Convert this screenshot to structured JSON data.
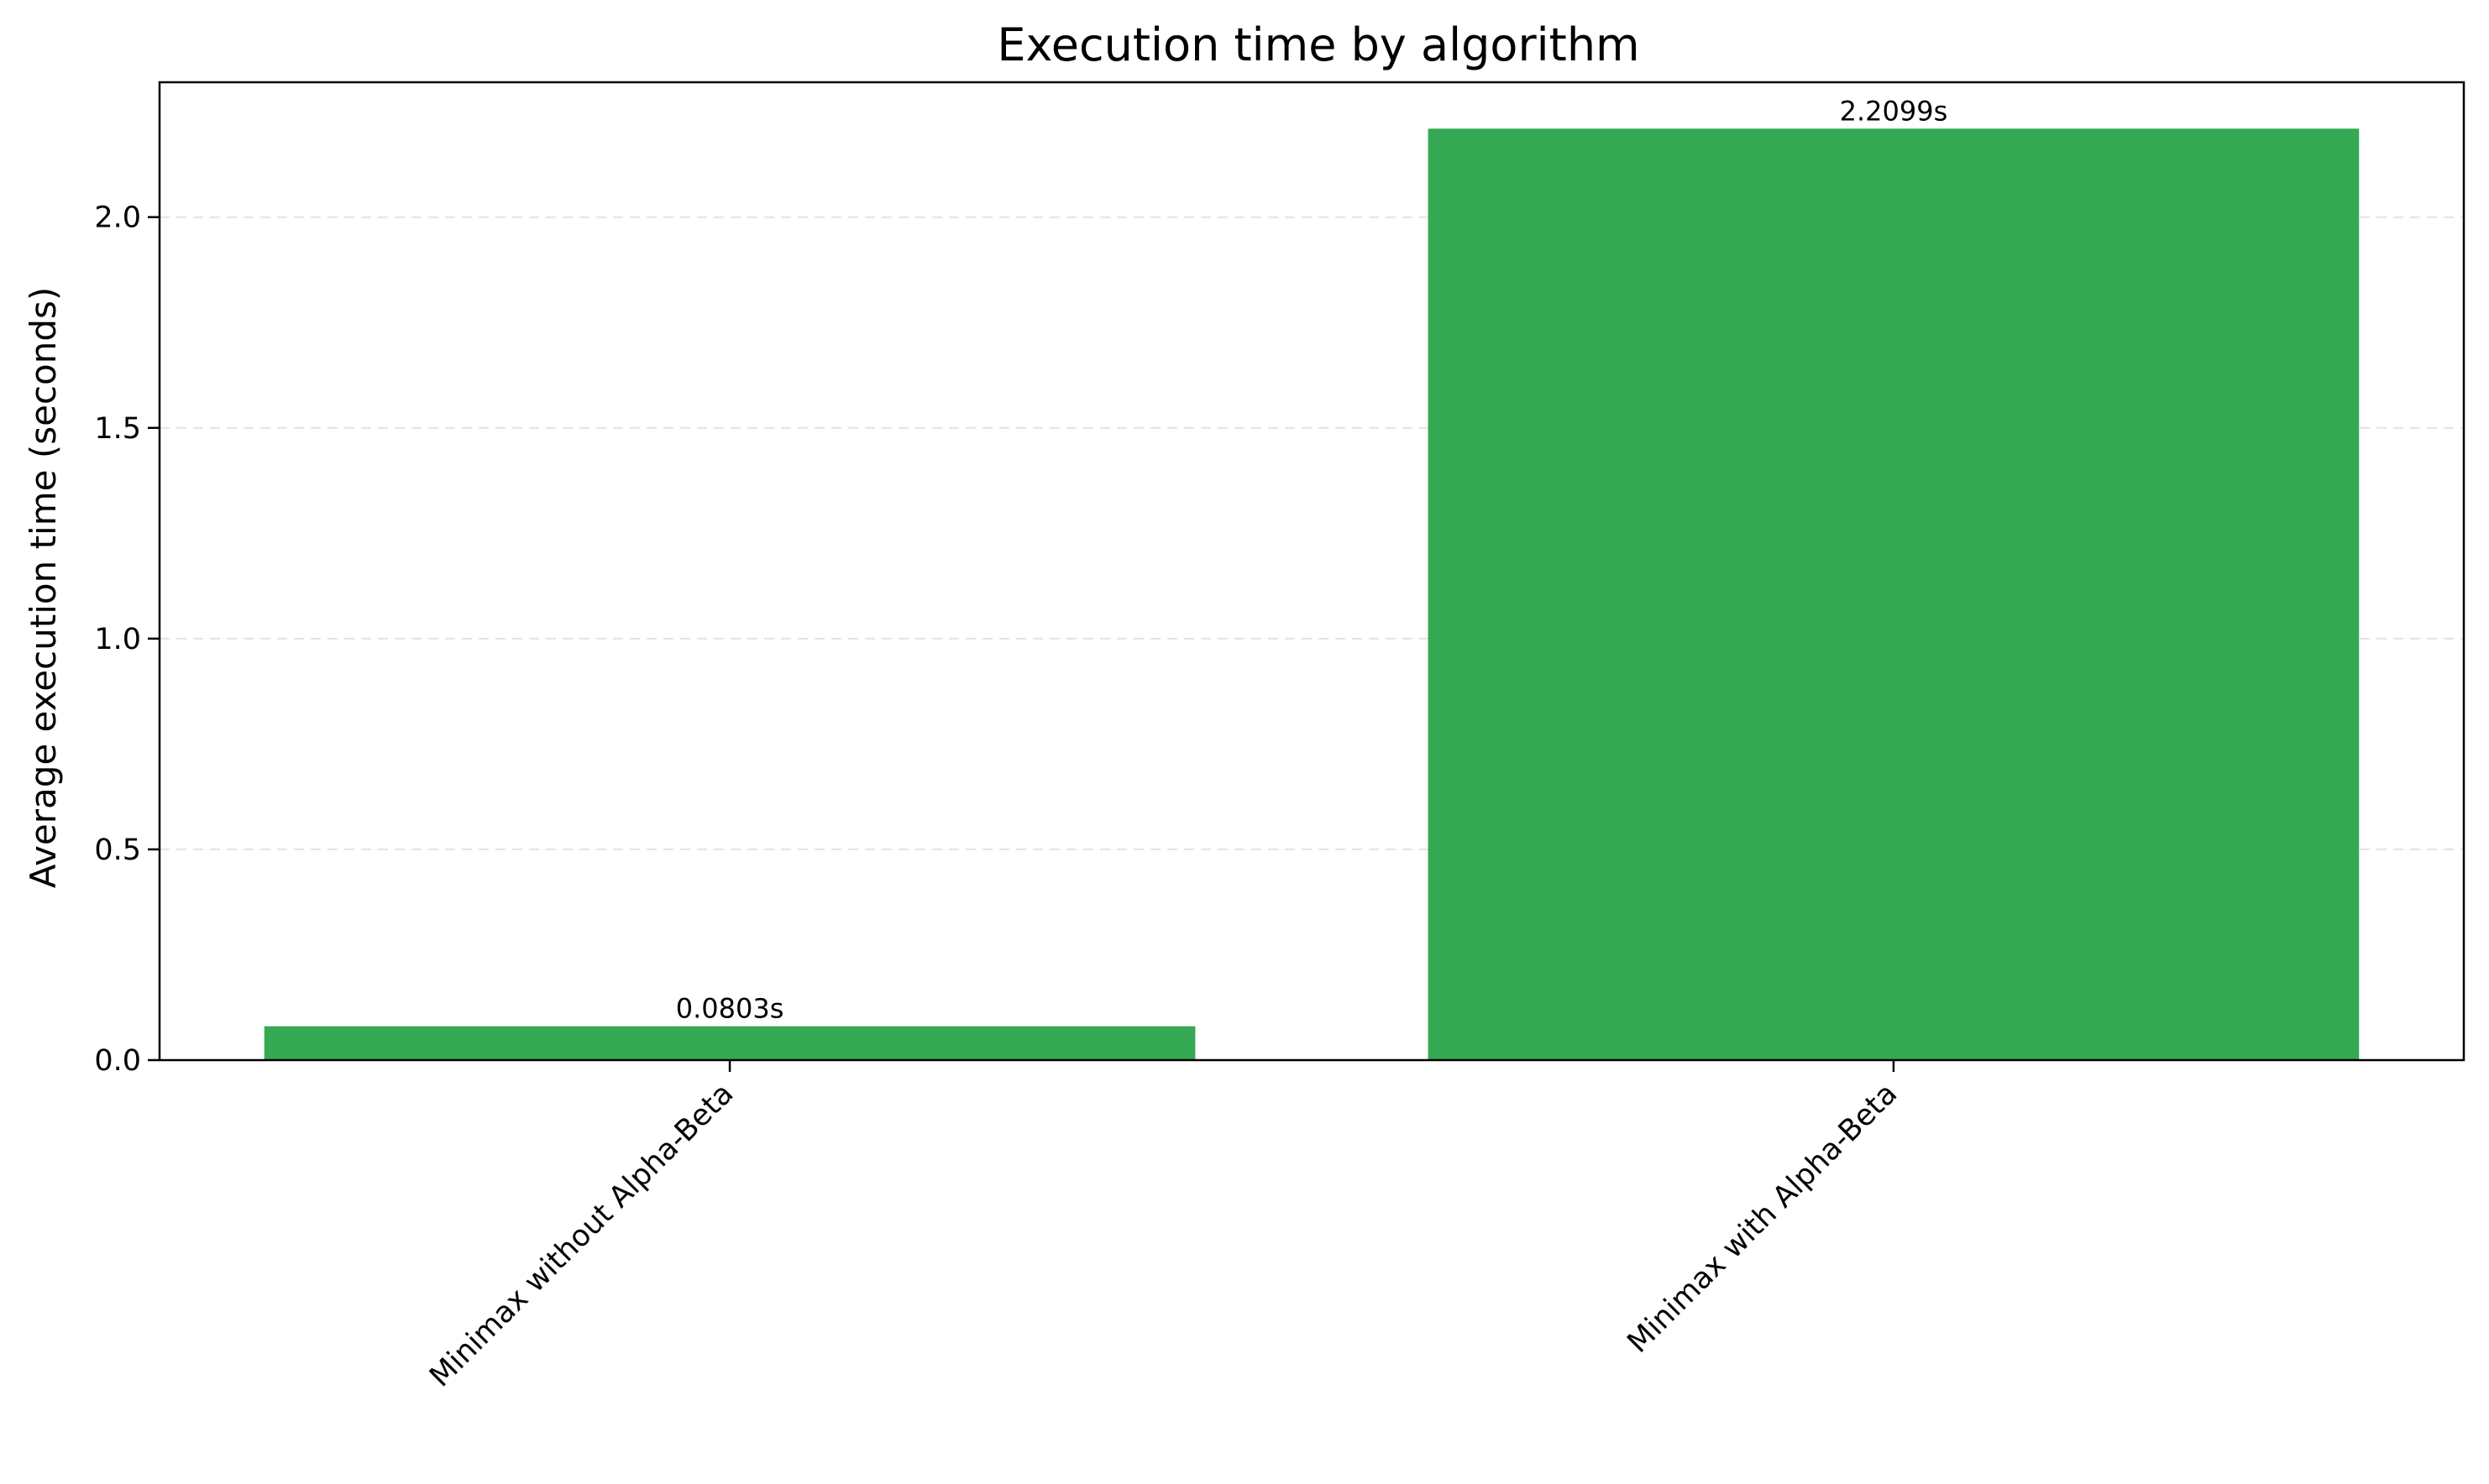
{
  "chart_data": {
    "type": "bar",
    "title": "Execution time by algorithm",
    "xlabel": "",
    "ylabel": "Average execution time (seconds)",
    "categories": [
      "Minimax without Alpha-Beta",
      "Minimax with Alpha-Beta"
    ],
    "values": [
      0.0803,
      2.2099
    ],
    "value_labels": [
      "0.0803s",
      "2.2099s"
    ],
    "ylim": [
      0,
      2.32
    ],
    "yticks": [
      0.0,
      0.5,
      1.0,
      1.5,
      2.0
    ],
    "ytick_labels": [
      "0.0",
      "0.5",
      "1.0",
      "1.5",
      "2.0"
    ],
    "grid": "y-dashed",
    "bar_color": "#35a853",
    "xtick_rotation": -45
  }
}
